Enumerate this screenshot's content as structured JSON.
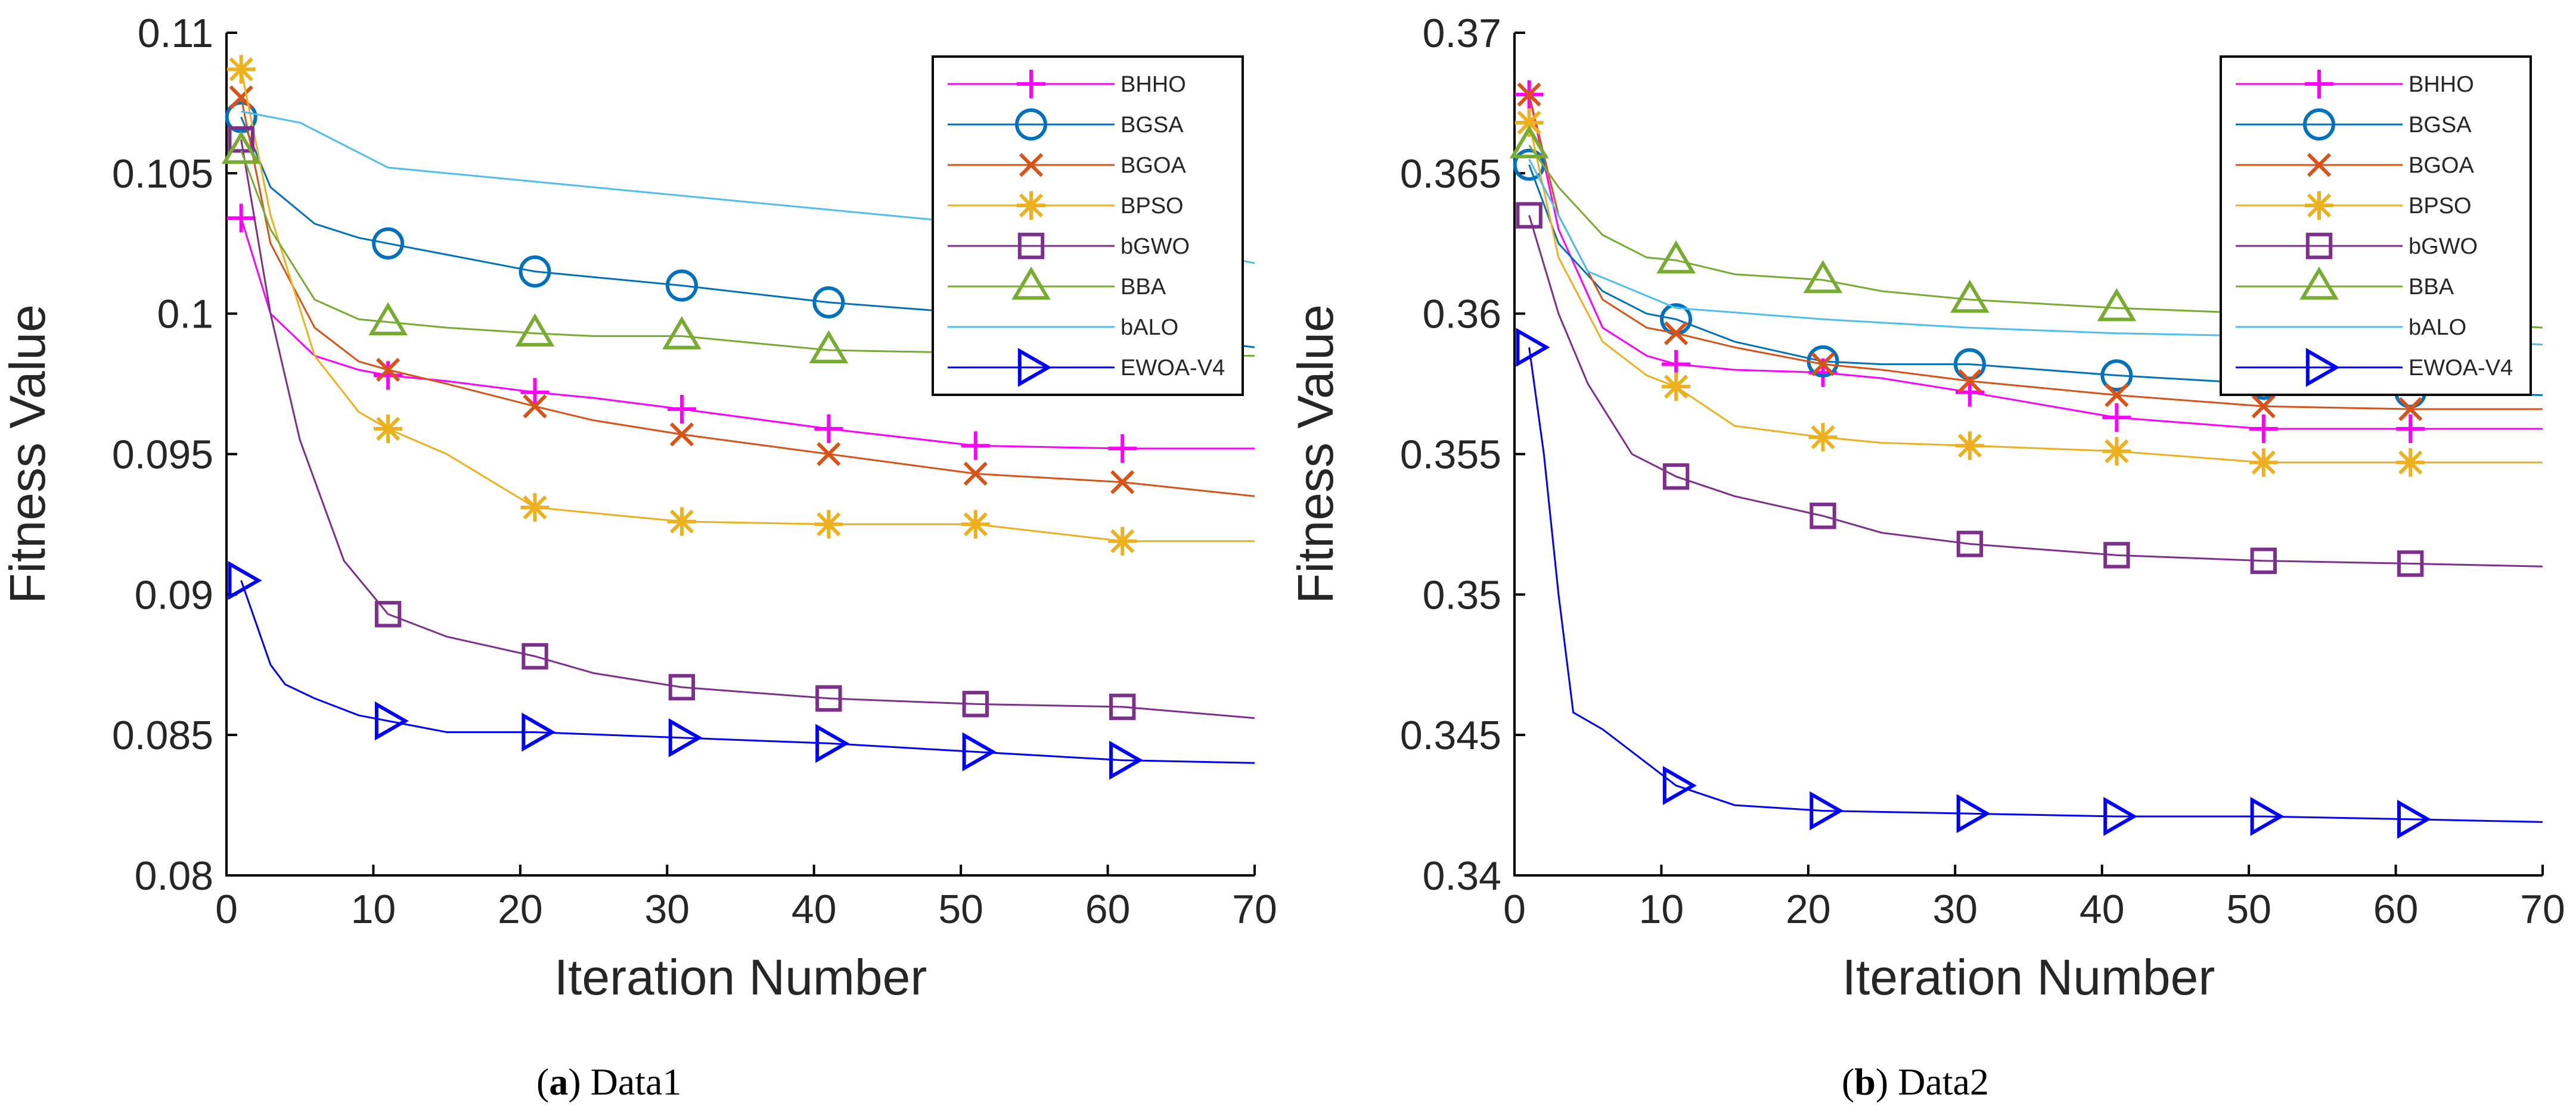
{
  "chart_data": [
    {
      "type": "line",
      "panel_label": "a",
      "caption": "Data1",
      "xlabel": "Iteration Number",
      "ylabel": "Fitness Value",
      "xlim": [
        0,
        70
      ],
      "ylim": [
        0.08,
        0.11
      ],
      "xticks": [
        0,
        10,
        20,
        30,
        40,
        50,
        60,
        70
      ],
      "yticks": [
        0.08,
        0.085,
        0.09,
        0.095,
        0.1,
        0.105,
        0.11
      ],
      "ytick_labels": [
        "0.08",
        "0.085",
        "0.09",
        "0.095",
        "0.1",
        "0.105",
        "0.11"
      ],
      "legend_position": "top-right",
      "grid": false,
      "series": [
        {
          "name": "BHHO",
          "color": "#ff00ff",
          "marker": "plus",
          "x": [
            1,
            3,
            6,
            9,
            11,
            15,
            21,
            25,
            31,
            41,
            51,
            61,
            70
          ],
          "values": [
            0.1034,
            0.1,
            0.0985,
            0.098,
            0.0978,
            0.0976,
            0.0972,
            0.097,
            0.0966,
            0.0959,
            0.0953,
            0.0952,
            0.0952
          ]
        },
        {
          "name": "BGSA",
          "color": "#0072bd",
          "marker": "circle",
          "x": [
            1,
            3,
            6,
            9,
            11,
            15,
            21,
            25,
            31,
            41,
            51,
            61,
            70
          ],
          "values": [
            0.107,
            0.1045,
            0.1032,
            0.1027,
            0.1025,
            0.1021,
            0.1015,
            0.1013,
            0.101,
            0.1004,
            0.1,
            0.0994,
            0.0988
          ]
        },
        {
          "name": "BGOA",
          "color": "#d95319",
          "marker": "x",
          "x": [
            1,
            3,
            6,
            9,
            11,
            15,
            21,
            25,
            31,
            41,
            51,
            61,
            70
          ],
          "values": [
            0.1077,
            0.1025,
            0.0995,
            0.0983,
            0.098,
            0.0975,
            0.0967,
            0.0962,
            0.0957,
            0.095,
            0.0943,
            0.094,
            0.0935
          ]
        },
        {
          "name": "BPSO",
          "color": "#edb120",
          "marker": "asterisk",
          "x": [
            1,
            3,
            6,
            9,
            11,
            15,
            21,
            25,
            31,
            41,
            51,
            61,
            70
          ],
          "values": [
            0.1087,
            0.1035,
            0.0985,
            0.0965,
            0.0959,
            0.095,
            0.0931,
            0.0929,
            0.0926,
            0.0925,
            0.0925,
            0.0919,
            0.0919
          ]
        },
        {
          "name": "bGWO",
          "color": "#7e2f8e",
          "marker": "square",
          "x": [
            1,
            3,
            5,
            8,
            11,
            15,
            21,
            25,
            31,
            41,
            51,
            61,
            70
          ],
          "values": [
            0.1062,
            0.1,
            0.0955,
            0.0912,
            0.0893,
            0.0885,
            0.0878,
            0.0872,
            0.0867,
            0.0863,
            0.0861,
            0.086,
            0.0856
          ]
        },
        {
          "name": "BBA",
          "color": "#77ac30",
          "marker": "triangle",
          "x": [
            1,
            3,
            6,
            9,
            11,
            15,
            21,
            25,
            31,
            41,
            51,
            61,
            70
          ],
          "values": [
            0.1058,
            0.103,
            0.1005,
            0.0998,
            0.0997,
            0.0995,
            0.0993,
            0.0992,
            0.0992,
            0.0987,
            0.0986,
            0.0985,
            0.0985
          ]
        },
        {
          "name": "bALO",
          "color": "#4dbeee",
          "marker": "none",
          "x": [
            1,
            5,
            11,
            21,
            31,
            41,
            51,
            61,
            70
          ],
          "values": [
            0.1072,
            0.1068,
            0.1052,
            0.1047,
            0.1042,
            0.1037,
            0.1032,
            0.1027,
            0.1018
          ]
        },
        {
          "name": "EWOA-V4",
          "color": "#0000ff",
          "marker": "triangle-right",
          "x": [
            1,
            2,
            3,
            4,
            6,
            9,
            11,
            15,
            21,
            31,
            41,
            51,
            61,
            70
          ],
          "values": [
            0.0905,
            0.089,
            0.0875,
            0.0868,
            0.0863,
            0.0857,
            0.0855,
            0.0851,
            0.0851,
            0.0849,
            0.0847,
            0.0844,
            0.0841,
            0.084
          ]
        }
      ]
    },
    {
      "type": "line",
      "panel_label": "b",
      "caption": "Data2",
      "xlabel": "Iteration Number",
      "ylabel": "Fitness Value",
      "xlim": [
        0,
        70
      ],
      "ylim": [
        0.34,
        0.37
      ],
      "xticks": [
        0,
        10,
        20,
        30,
        40,
        50,
        60,
        70
      ],
      "yticks": [
        0.34,
        0.345,
        0.35,
        0.355,
        0.36,
        0.365,
        0.37
      ],
      "ytick_labels": [
        "0.34",
        "0.345",
        "0.35",
        "0.355",
        "0.36",
        "0.365",
        "0.37"
      ],
      "legend_position": "top-right",
      "grid": false,
      "series": [
        {
          "name": "BHHO",
          "color": "#ff00ff",
          "marker": "plus",
          "x": [
            1,
            3,
            6,
            9,
            11,
            15,
            21,
            25,
            31,
            41,
            51,
            61,
            70
          ],
          "values": [
            0.3678,
            0.363,
            0.3595,
            0.3585,
            0.3582,
            0.358,
            0.3579,
            0.3577,
            0.3572,
            0.3563,
            0.3559,
            0.3559,
            0.3559
          ]
        },
        {
          "name": "BGSA",
          "color": "#0072bd",
          "marker": "circle",
          "x": [
            1,
            3,
            6,
            9,
            11,
            15,
            21,
            25,
            31,
            41,
            51,
            61,
            70
          ],
          "values": [
            0.3653,
            0.3625,
            0.3608,
            0.36,
            0.3598,
            0.359,
            0.3583,
            0.3582,
            0.3582,
            0.3578,
            0.3575,
            0.3572,
            0.3571
          ]
        },
        {
          "name": "BGOA",
          "color": "#d95319",
          "marker": "x",
          "x": [
            1,
            3,
            6,
            9,
            11,
            15,
            21,
            25,
            31,
            41,
            51,
            61,
            70
          ],
          "values": [
            0.3678,
            0.3635,
            0.3605,
            0.3595,
            0.3593,
            0.3588,
            0.3582,
            0.358,
            0.3576,
            0.3571,
            0.3567,
            0.3566,
            0.3566
          ]
        },
        {
          "name": "BPSO",
          "color": "#edb120",
          "marker": "asterisk",
          "x": [
            1,
            3,
            6,
            9,
            11,
            15,
            21,
            25,
            31,
            41,
            51,
            61,
            70
          ],
          "values": [
            0.3668,
            0.362,
            0.359,
            0.3578,
            0.3574,
            0.356,
            0.3556,
            0.3554,
            0.3553,
            0.3551,
            0.3547,
            0.3547,
            0.3547
          ]
        },
        {
          "name": "bGWO",
          "color": "#7e2f8e",
          "marker": "square",
          "x": [
            1,
            3,
            5,
            8,
            11,
            15,
            21,
            25,
            31,
            41,
            51,
            61,
            70
          ],
          "values": [
            0.3635,
            0.36,
            0.3575,
            0.355,
            0.3542,
            0.3535,
            0.3528,
            0.3522,
            0.3518,
            0.3514,
            0.3512,
            0.3511,
            0.351
          ]
        },
        {
          "name": "BBA",
          "color": "#77ac30",
          "marker": "triangle",
          "x": [
            1,
            3,
            6,
            9,
            11,
            15,
            21,
            25,
            31,
            41,
            51,
            61,
            70
          ],
          "values": [
            0.366,
            0.3645,
            0.3628,
            0.362,
            0.3619,
            0.3614,
            0.3612,
            0.3608,
            0.3605,
            0.3602,
            0.36,
            0.3598,
            0.3595
          ]
        },
        {
          "name": "bALO",
          "color": "#4dbeee",
          "marker": "none",
          "x": [
            1,
            5,
            11,
            21,
            31,
            41,
            51,
            61,
            70
          ],
          "values": [
            0.3655,
            0.3615,
            0.3602,
            0.3598,
            0.3595,
            0.3593,
            0.3592,
            0.3591,
            0.3589
          ]
        },
        {
          "name": "EWOA-V4",
          "color": "#0000ff",
          "marker": "triangle-right",
          "x": [
            1,
            2,
            3,
            4,
            6,
            9,
            11,
            15,
            21,
            31,
            41,
            51,
            61,
            70
          ],
          "values": [
            0.3588,
            0.355,
            0.35,
            0.3458,
            0.3452,
            0.344,
            0.3432,
            0.3425,
            0.3423,
            0.3422,
            0.3421,
            0.3421,
            0.342,
            0.3419
          ]
        }
      ]
    }
  ]
}
